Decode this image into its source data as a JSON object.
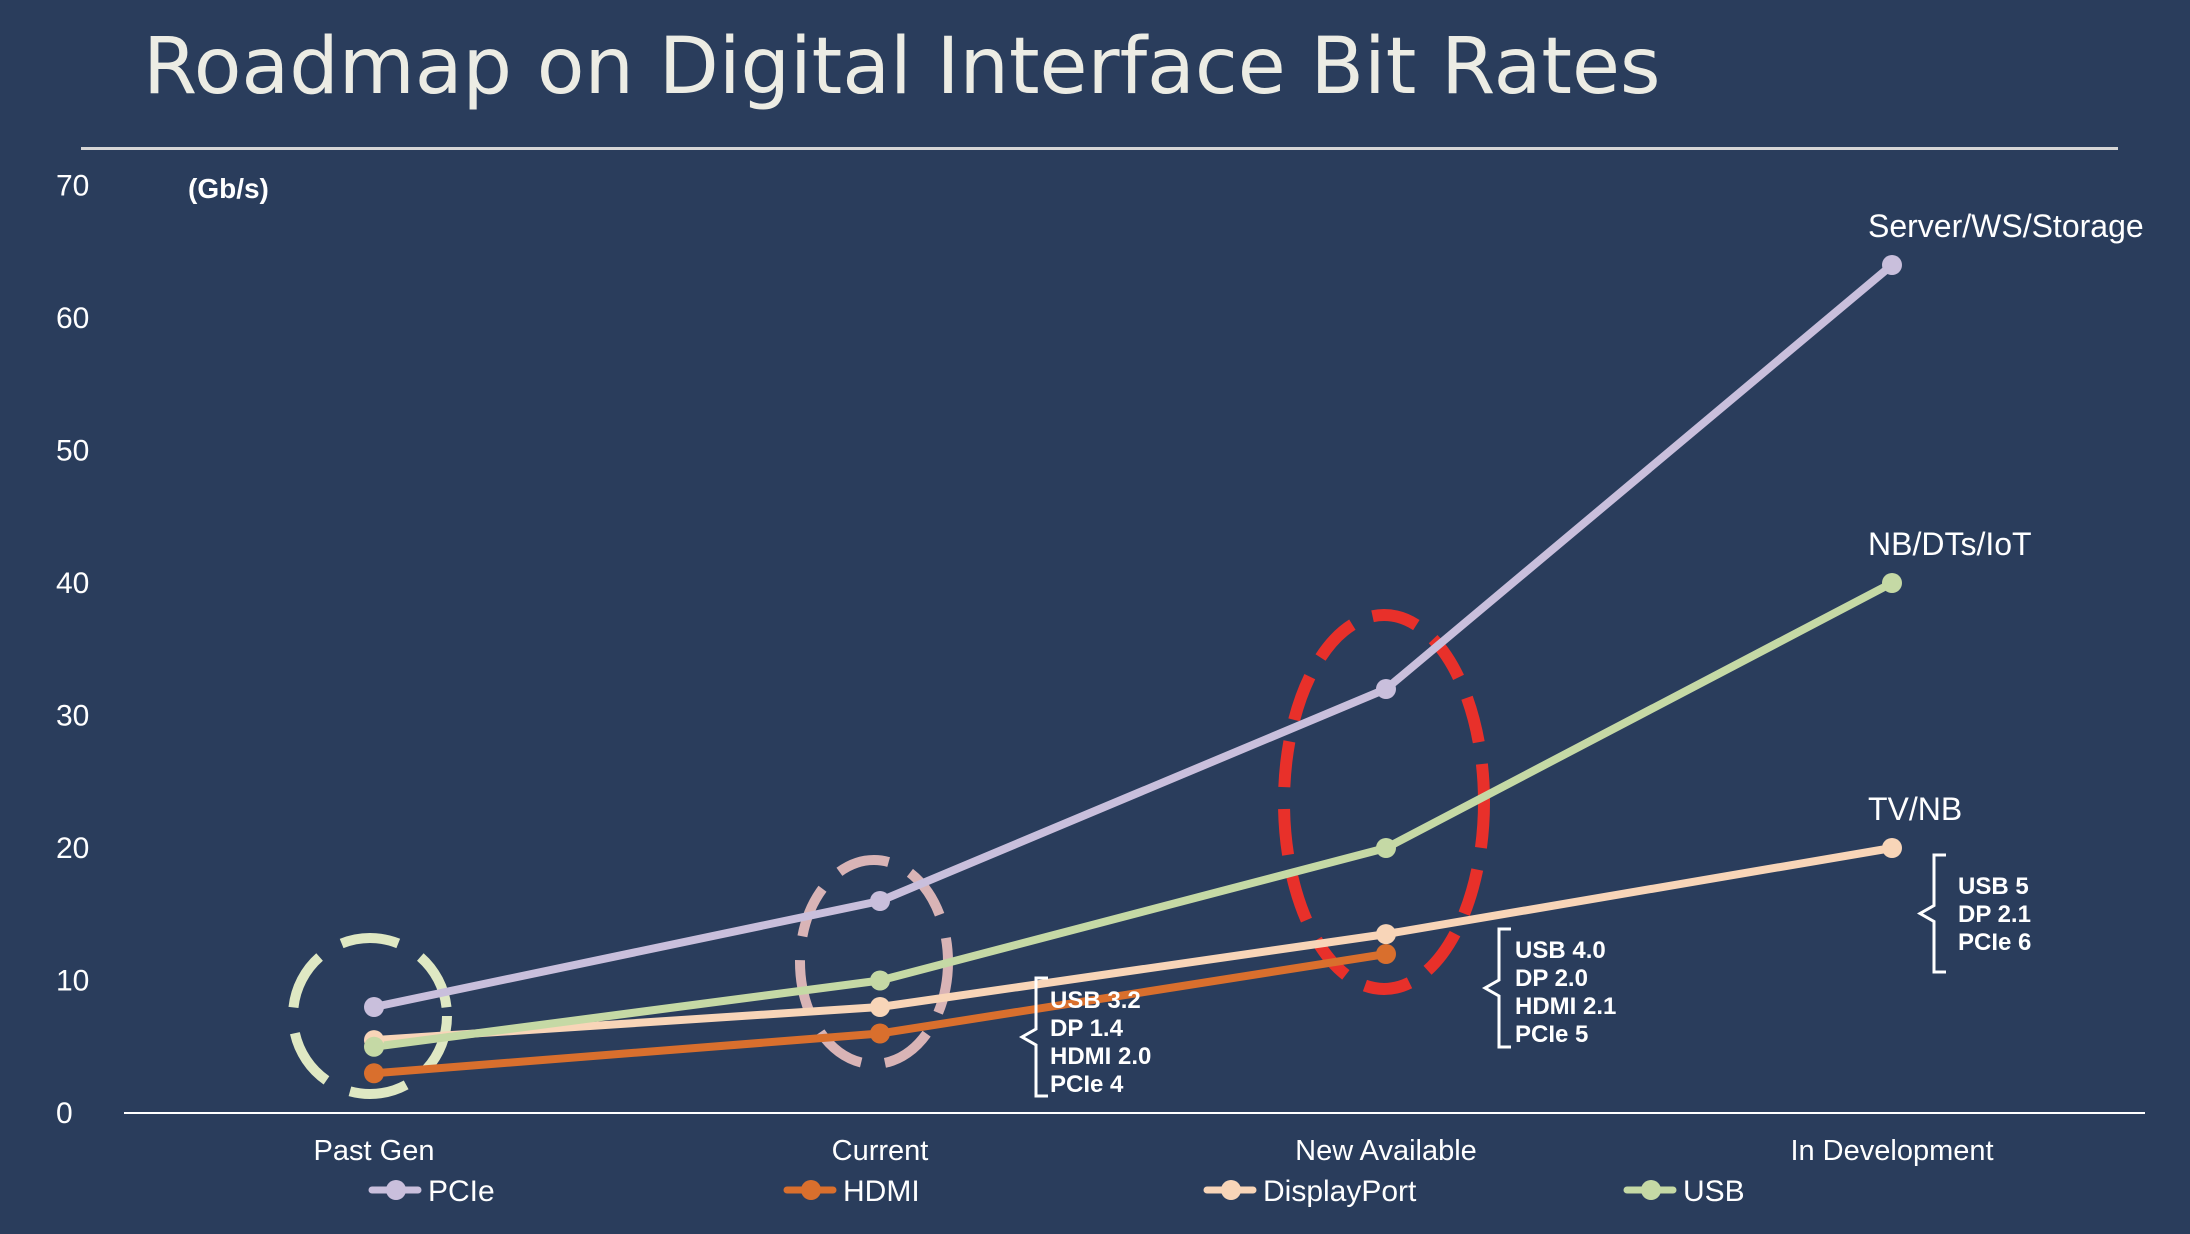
{
  "title": "Roadmap on Digital Interface Bit Rates",
  "chart_data": {
    "type": "line",
    "title": "Roadmap on Digital Interface Bit Rates",
    "ylabel": "(Gb/s)",
    "xlabel": "",
    "ylim": [
      0,
      70
    ],
    "yticks": [
      0,
      10,
      20,
      30,
      40,
      50,
      60,
      70
    ],
    "categories": [
      "Past Gen",
      "Current",
      "New Available",
      "In Development"
    ],
    "grid": false,
    "legend_position": "bottom",
    "series": [
      {
        "name": "PCIe",
        "color": "#c9bfdc",
        "values": [
          8,
          16,
          32,
          64
        ]
      },
      {
        "name": "HDMI",
        "color": "#d96f2d",
        "values": [
          3,
          6,
          12,
          null
        ]
      },
      {
        "name": "DisplayPort",
        "color": "#f8d5b8",
        "values": [
          5.5,
          8,
          13.5,
          20
        ]
      },
      {
        "name": "USB",
        "color": "#c5d9a5",
        "values": [
          5,
          10,
          20,
          40
        ]
      }
    ],
    "segment_labels": [
      {
        "text": "Server/WS/Storage",
        "category": 3,
        "value": 64
      },
      {
        "text": "NB/DTs/IoT",
        "category": 3,
        "value": 40
      },
      {
        "text": "TV/NB",
        "category": 3,
        "value": 20
      }
    ],
    "annotations": [
      {
        "category": 1,
        "lines": [
          "USB 3.2",
          "DP 1.4",
          "HDMI 2.0",
          "PCIe 4"
        ]
      },
      {
        "category": 2,
        "lines": [
          "USB 4.0",
          "DP 2.0",
          "HDMI 2.1",
          "PCIe 5"
        ]
      },
      {
        "category": 3,
        "lines": [
          "USB 5",
          "DP 2.1",
          "PCIe 6"
        ]
      }
    ],
    "highlight_ellipses": [
      {
        "category": 0,
        "color": "#dfe8c3"
      },
      {
        "category": 1,
        "color": "#d9b4b6"
      },
      {
        "category": 2,
        "color": "#e8302a"
      }
    ]
  }
}
